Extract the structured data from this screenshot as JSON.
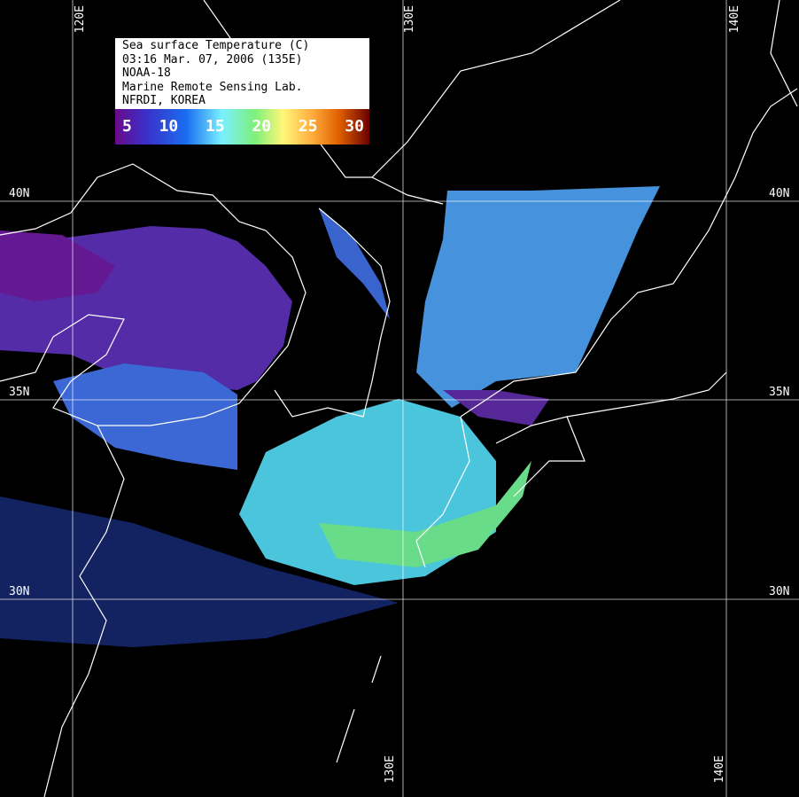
{
  "legend": {
    "lines": [
      "Sea surface Temperature (C)",
      "03:16 Mar. 07, 2006 (135E)",
      "NOAA-18",
      "Marine Remote Sensing Lab.",
      "NFRDI, KOREA"
    ],
    "scale_ticks": [
      "5",
      "10",
      "15",
      "20",
      "25",
      "30"
    ],
    "scale_colors": [
      "#6a0a8a",
      "#1a6df0",
      "#7af0ff",
      "#fff77a",
      "#e06000",
      "#6a0000"
    ]
  },
  "grid": {
    "longitude_labels_top": [
      "120E",
      "130E",
      "140E"
    ],
    "longitude_labels_bottom": [
      "130E",
      "140E"
    ],
    "latitude_labels_left": [
      "40N",
      "35N",
      "30N"
    ],
    "latitude_labels_right": [
      "40N",
      "35N",
      "30N"
    ],
    "line_color": "#ffffff"
  },
  "background_color": "#000000"
}
